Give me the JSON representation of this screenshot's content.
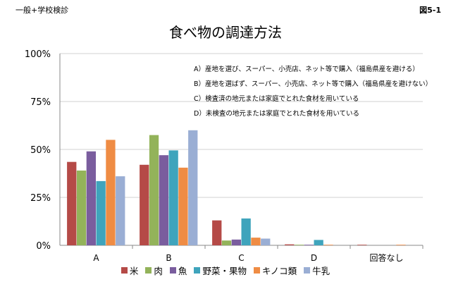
{
  "header": {
    "left": "一般+学校検診",
    "right": "図5-1"
  },
  "chart_data": {
    "type": "bar",
    "title": "食べ物の調達方法",
    "categories": [
      "A",
      "B",
      "C",
      "D",
      "回答なし"
    ],
    "ylim": [
      0,
      100
    ],
    "yticks": [
      "0%",
      "25%",
      "50%",
      "75%",
      "100%"
    ],
    "grid": true,
    "legend": "bottom",
    "series": [
      {
        "name": "米",
        "color": "#b54a47",
        "values": [
          43.5,
          42.0,
          13.0,
          0.5,
          0.3
        ]
      },
      {
        "name": "肉",
        "color": "#93b35a",
        "values": [
          39.0,
          57.5,
          2.5,
          0.3,
          0.0
        ]
      },
      {
        "name": "魚",
        "color": "#7a5d9e",
        "values": [
          49.0,
          47.0,
          3.0,
          0.3,
          0.0
        ]
      },
      {
        "name": "野菜・果物",
        "color": "#3fa4bc",
        "values": [
          33.5,
          49.5,
          14.0,
          2.8,
          0.0
        ]
      },
      {
        "name": "キノコ類",
        "color": "#ef8c44",
        "values": [
          55.0,
          40.5,
          4.0,
          0.3,
          0.3
        ]
      },
      {
        "name": "牛乳",
        "color": "#9aaed4",
        "values": [
          36.0,
          60.0,
          3.5,
          0.0,
          0.0
        ]
      }
    ],
    "annotations": [
      "A）産地を選び、スーパー、小売店、ネット等で購入（福島県産を避ける）",
      "B）産地を選ばず、スーパー、小売店、ネット等で購入（福島県産を避けない）",
      "C）検査済の地元または家庭でとれた食材を用いている",
      "D）未検査の地元または家庭でとれた食材を用いている"
    ]
  }
}
